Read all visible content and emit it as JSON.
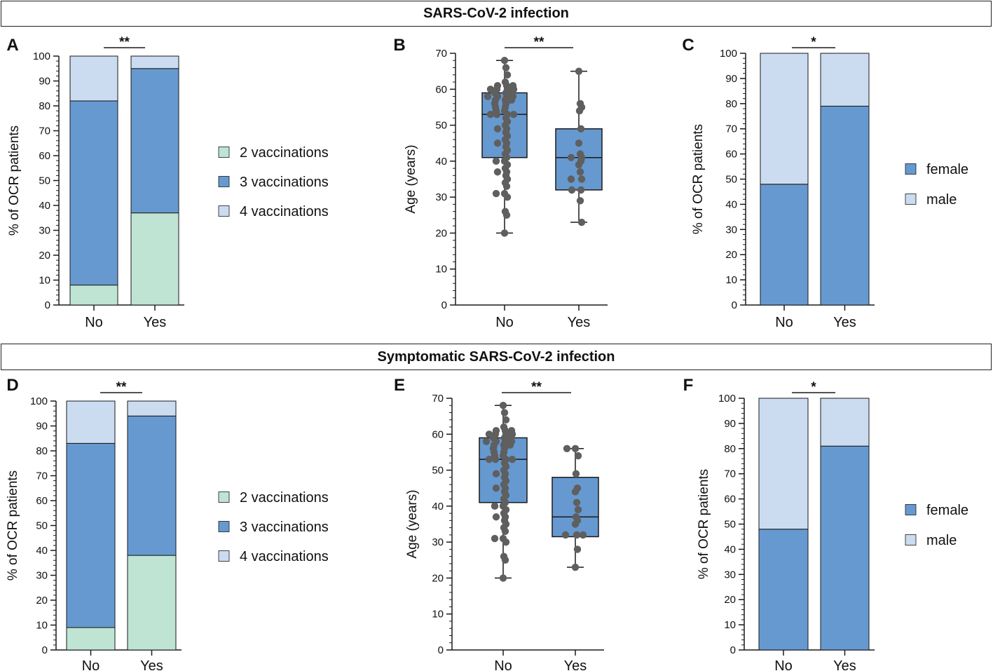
{
  "banners": {
    "top": "SARS-CoV-2 infection",
    "bottom": "Symptomatic SARS-CoV-2 infection"
  },
  "colors": {
    "vacc2": "#bfe4d3",
    "vacc3": "#6699d0",
    "vacc4": "#cbdcf1",
    "female": "#6699d0",
    "male": "#cbdcf1",
    "box": "#6699d0",
    "dot": "#5f5f5f",
    "line": "#1a1a1a"
  },
  "chart_data": [
    {
      "panel": "A",
      "type": "bar",
      "stacked": true,
      "categories": [
        "No",
        "Yes"
      ],
      "ylabel": "% of OCR patients",
      "ylim": [
        0,
        100
      ],
      "yticks": [
        0,
        10,
        20,
        30,
        40,
        50,
        60,
        70,
        80,
        90,
        100
      ],
      "series": [
        {
          "name": "2 vaccinations",
          "color_key": "vacc2",
          "values": [
            8,
            37
          ]
        },
        {
          "name": "3 vaccinations",
          "color_key": "vacc3",
          "values": [
            74,
            58
          ]
        },
        {
          "name": "4 vaccinations",
          "color_key": "vacc4",
          "values": [
            18,
            5
          ]
        }
      ],
      "significance": "**",
      "legend": [
        "2 vaccinations",
        "3 vaccinations",
        "4 vaccinations"
      ]
    },
    {
      "panel": "B",
      "type": "box",
      "categories": [
        "No",
        "Yes"
      ],
      "ylabel": "Age (years)",
      "ylim": [
        0,
        70
      ],
      "yticks": [
        0,
        10,
        20,
        30,
        40,
        50,
        60,
        70
      ],
      "boxes": [
        {
          "min": 20,
          "q1": 41,
          "median": 53,
          "q3": 59,
          "max": 68
        },
        {
          "min": 23,
          "q1": 32,
          "median": 41,
          "q3": 49,
          "max": 65
        }
      ],
      "points": [
        [
          68,
          66,
          64,
          62,
          61,
          61,
          61,
          60,
          60,
          60,
          60,
          59,
          59,
          59,
          58,
          58,
          58,
          58,
          57,
          57,
          57,
          56,
          56,
          55,
          55,
          54,
          54,
          53,
          53,
          53,
          53,
          52,
          51,
          50,
          49,
          49,
          48,
          47,
          46,
          45,
          45,
          44,
          43,
          42,
          41,
          40,
          40,
          39,
          38,
          37,
          37,
          36,
          35,
          34,
          33,
          31,
          31,
          30,
          26,
          25,
          20
        ],
        [
          65,
          56,
          55,
          54,
          49,
          45,
          42,
          41,
          41,
          40,
          39,
          37,
          35,
          35,
          32,
          32,
          29,
          23
        ]
      ],
      "significance": "**"
    },
    {
      "panel": "C",
      "type": "bar",
      "stacked": true,
      "categories": [
        "No",
        "Yes"
      ],
      "ylabel": "% of OCR patients",
      "ylim": [
        0,
        100
      ],
      "yticks": [
        0,
        10,
        20,
        30,
        40,
        50,
        60,
        70,
        80,
        90,
        100
      ],
      "series": [
        {
          "name": "female",
          "color_key": "female",
          "values": [
            48,
            79
          ]
        },
        {
          "name": "male",
          "color_key": "male",
          "values": [
            52,
            21
          ]
        }
      ],
      "significance": "*",
      "legend": [
        "female",
        "male"
      ]
    },
    {
      "panel": "D",
      "type": "bar",
      "stacked": true,
      "categories": [
        "No",
        "Yes"
      ],
      "ylabel": "% of OCR patients",
      "ylim": [
        0,
        100
      ],
      "yticks": [
        0,
        10,
        20,
        30,
        40,
        50,
        60,
        70,
        80,
        90,
        100
      ],
      "series": [
        {
          "name": "2 vaccinations",
          "color_key": "vacc2",
          "values": [
            9,
            38
          ]
        },
        {
          "name": "3 vaccinations",
          "color_key": "vacc3",
          "values": [
            74,
            56
          ]
        },
        {
          "name": "4 vaccinations",
          "color_key": "vacc4",
          "values": [
            17,
            6
          ]
        }
      ],
      "significance": "**",
      "legend": [
        "2 vaccinations",
        "3 vaccinations",
        "4 vaccinations"
      ]
    },
    {
      "panel": "E",
      "type": "box",
      "categories": [
        "No",
        "Yes"
      ],
      "ylabel": "Age (years)",
      "ylim": [
        0,
        70
      ],
      "yticks": [
        0,
        10,
        20,
        30,
        40,
        50,
        60,
        70
      ],
      "boxes": [
        {
          "min": 20,
          "q1": 41,
          "median": 53,
          "q3": 59,
          "max": 68
        },
        {
          "min": 23,
          "q1": 31.5,
          "median": 37,
          "q3": 48,
          "max": 56
        }
      ],
      "points": [
        [
          68,
          66,
          64,
          62,
          61,
          61,
          61,
          60,
          60,
          60,
          60,
          59,
          59,
          59,
          58,
          58,
          58,
          58,
          57,
          57,
          57,
          56,
          56,
          55,
          55,
          54,
          54,
          53,
          53,
          53,
          53,
          52,
          51,
          50,
          49,
          49,
          48,
          47,
          46,
          45,
          45,
          44,
          43,
          42,
          41,
          40,
          40,
          39,
          38,
          37,
          37,
          36,
          35,
          34,
          33,
          31,
          31,
          30,
          26,
          25,
          20
        ],
        [
          56,
          56,
          54,
          49,
          45,
          44,
          41,
          39,
          37,
          36,
          35,
          32,
          32,
          32,
          28,
          23
        ]
      ],
      "significance": "**"
    },
    {
      "panel": "F",
      "type": "bar",
      "stacked": true,
      "categories": [
        "No",
        "Yes"
      ],
      "ylabel": "% of OCR patients",
      "ylim": [
        0,
        100
      ],
      "yticks": [
        0,
        10,
        20,
        30,
        40,
        50,
        60,
        70,
        80,
        90,
        100
      ],
      "series": [
        {
          "name": "female",
          "color_key": "female",
          "values": [
            48,
            81
          ]
        },
        {
          "name": "male",
          "color_key": "male",
          "values": [
            52,
            19
          ]
        }
      ],
      "significance": "*",
      "legend": [
        "female",
        "male"
      ]
    }
  ]
}
